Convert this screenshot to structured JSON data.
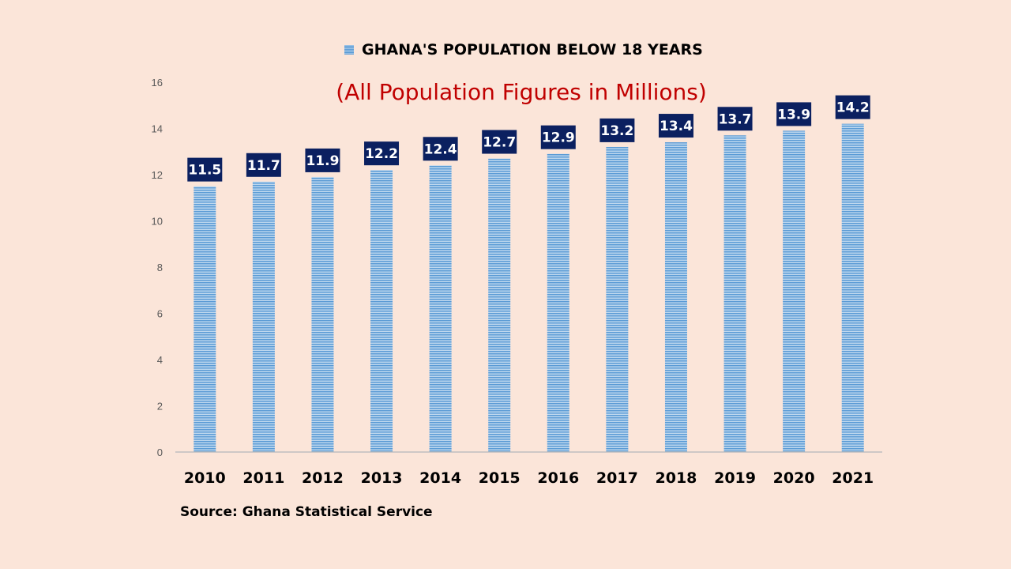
{
  "chart_data": {
    "type": "bar",
    "title": "GHANA'S POPULATION BELOW 18 YEARS",
    "subtitle": "(All Population Figures in Millions)",
    "legend": [
      "GHANA'S POPULATION BELOW 18 YEARS"
    ],
    "legend_position": "top",
    "categories": [
      "2010",
      "2011",
      "2012",
      "2013",
      "2014",
      "2015",
      "2016",
      "2017",
      "2018",
      "2019",
      "2020",
      "2021"
    ],
    "values": [
      11.5,
      11.7,
      11.9,
      12.2,
      12.4,
      12.7,
      12.9,
      13.2,
      13.4,
      13.7,
      13.9,
      14.2
    ],
    "data_labels": [
      "11.5",
      "11.7",
      "11.9",
      "12.2",
      "12.4",
      "12.7",
      "12.9",
      "13.2",
      "13.4",
      "13.7",
      "13.9",
      "14.2"
    ],
    "xlabel": "",
    "ylabel": "",
    "ylim": [
      0,
      16
    ],
    "yticks": [
      0,
      2,
      4,
      6,
      8,
      10,
      12,
      14,
      16
    ],
    "grid": false,
    "source": "Source: Ghana Statistical Service",
    "colors": {
      "bar": "#5b9bd5",
      "bar_stripe": "#bdd7ee",
      "label_bg": "#0b2060",
      "label_text": "#ffffff",
      "subtitle": "#c00000",
      "background": "#fbe5d9"
    }
  }
}
